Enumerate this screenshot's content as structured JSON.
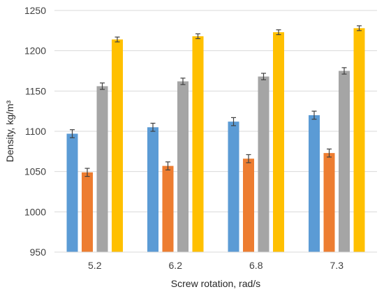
{
  "chart_data": {
    "type": "bar",
    "title": "",
    "xlabel": "Screw rotation, rad/s",
    "ylabel": "Density, kg/m³",
    "categories": [
      "5.2",
      "6.2",
      "6.8",
      "7.3"
    ],
    "ylim": [
      950,
      1250
    ],
    "yticks": [
      950,
      1000,
      1050,
      1100,
      1150,
      1200,
      1250
    ],
    "grid": true,
    "legend": "none",
    "series": [
      {
        "color": "#5B9BD5",
        "values": [
          1097,
          1105,
          1112,
          1120
        ],
        "errors": [
          5,
          5,
          5,
          5
        ]
      },
      {
        "color": "#ED7D31",
        "values": [
          1049,
          1057,
          1066,
          1073
        ],
        "errors": [
          5,
          5,
          5,
          5
        ]
      },
      {
        "color": "#A5A5A5",
        "values": [
          1156,
          1162,
          1168,
          1175
        ],
        "errors": [
          4,
          4,
          4,
          4
        ]
      },
      {
        "color": "#FFC000",
        "values": [
          1214,
          1218,
          1223,
          1228
        ],
        "errors": [
          3,
          3,
          3,
          3
        ]
      }
    ]
  }
}
